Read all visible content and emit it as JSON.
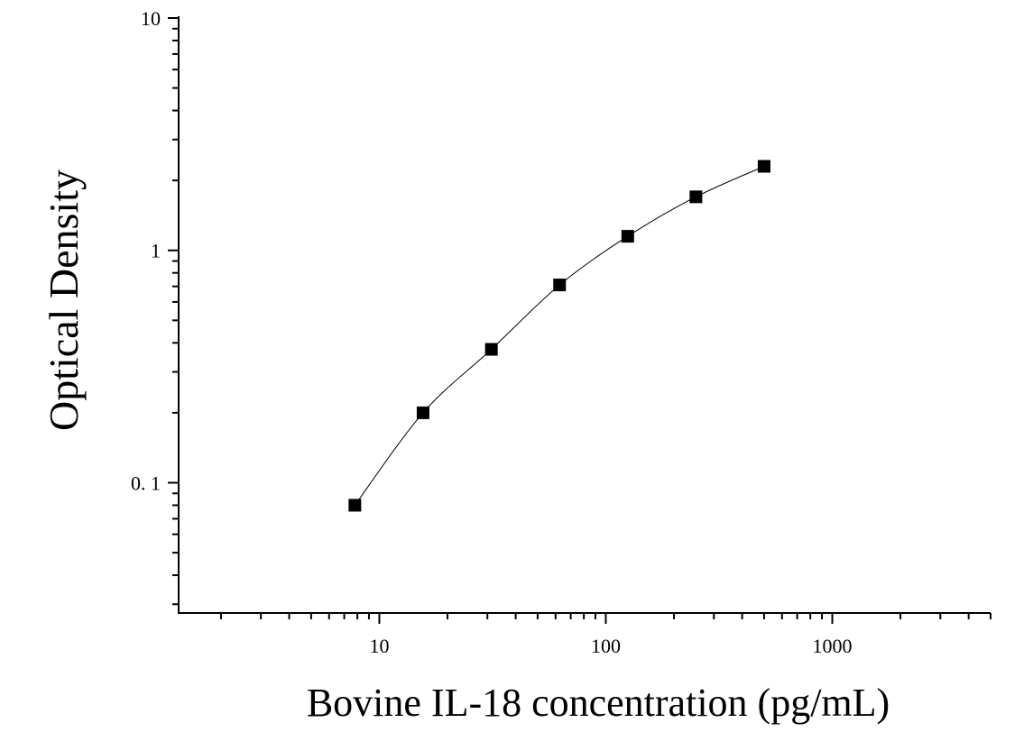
{
  "chart_data": {
    "type": "scatter",
    "title": "",
    "xlabel": "Bovine IL-18 concentration (pg/mL)",
    "ylabel": "Optical Density",
    "x_scale": "log",
    "y_scale": "log",
    "xlim": [
      1.3,
      5000
    ],
    "ylim": [
      0.0275,
      10
    ],
    "x_ticks": [
      {
        "value": 10,
        "label": "10"
      },
      {
        "value": 100,
        "label": "100"
      },
      {
        "value": 1000,
        "label": "1000"
      }
    ],
    "y_ticks": [
      {
        "value": 0.1,
        "label": "0. 1"
      },
      {
        "value": 1,
        "label": "1"
      },
      {
        "value": 10,
        "label": "10"
      }
    ],
    "grid": false,
    "legend": "none",
    "marker": "square",
    "colors": {
      "marker": "#000000",
      "line": "#000000",
      "axis": "#000000"
    },
    "series": [
      {
        "x": [
          7.8,
          15.6,
          31.25,
          62.5,
          125,
          250,
          500
        ],
        "y": [
          0.08,
          0.2,
          0.375,
          0.71,
          1.15,
          1.7,
          2.3
        ]
      }
    ],
    "fit_curve": true
  }
}
